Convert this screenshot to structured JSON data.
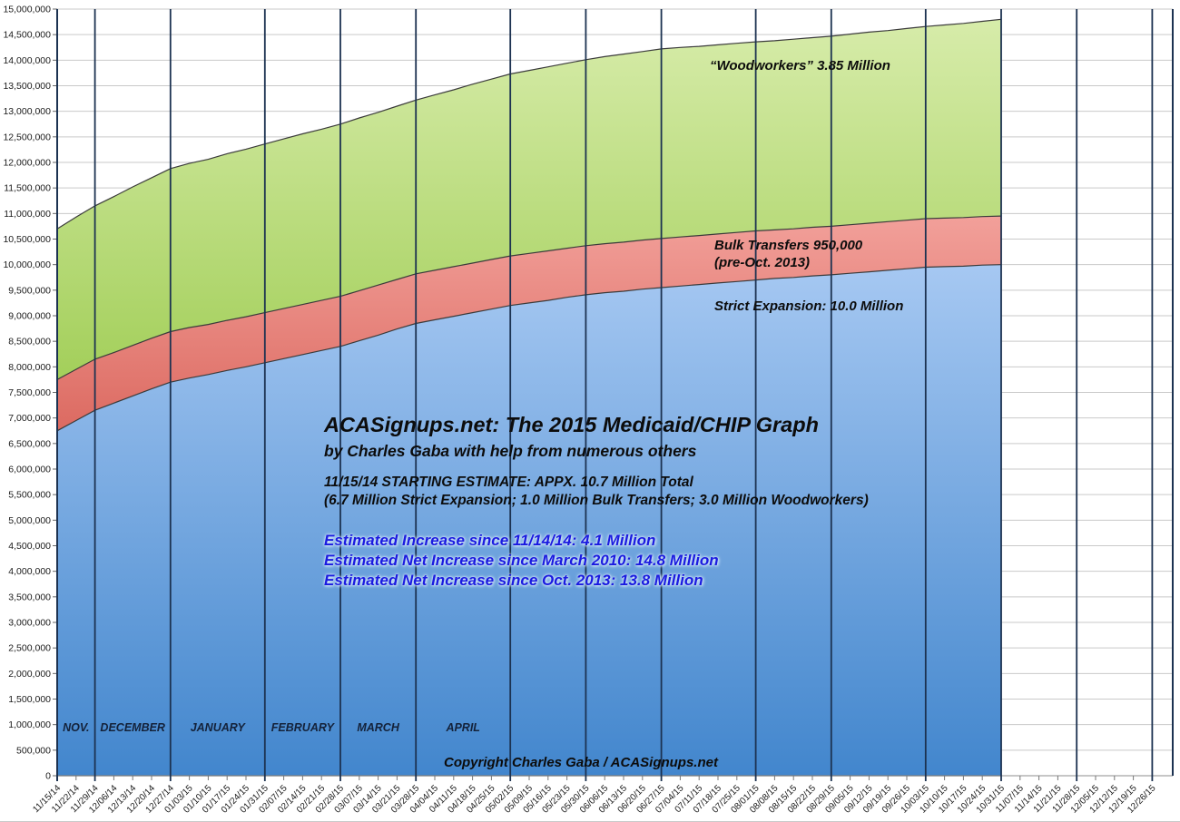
{
  "chart_data": {
    "type": "area",
    "stacked": true,
    "title": "ACASignups.net: The 2015 Medicaid/CHIP Graph",
    "subtitle": "by Charles Gaba with help from numerous others",
    "unit": "millions of people",
    "grid": true,
    "legend_position": "labels-on-areas",
    "y_axis": {
      "min": 0,
      "max": 15000000,
      "step": 500000
    },
    "x_labels": [
      "11/15/14",
      "11/22/14",
      "11/29/14",
      "12/06/14",
      "12/13/14",
      "12/20/14",
      "12/27/14",
      "01/03/15",
      "01/10/15",
      "01/17/15",
      "01/24/15",
      "01/31/15",
      "02/07/15",
      "02/14/15",
      "02/21/15",
      "02/28/15",
      "03/07/15",
      "03/14/15",
      "03/21/15",
      "03/28/15",
      "04/04/15",
      "04/11/15",
      "04/18/15",
      "04/25/15",
      "05/02/15",
      "05/09/15",
      "05/16/15",
      "05/23/15",
      "05/30/15",
      "06/06/15",
      "06/13/15",
      "06/20/15",
      "06/27/15",
      "07/04/15",
      "07/11/15",
      "07/18/15",
      "07/25/15",
      "08/01/15",
      "08/08/15",
      "08/15/15",
      "08/22/15",
      "08/29/15",
      "09/05/15",
      "09/12/15",
      "09/19/15",
      "09/26/15",
      "10/03/15",
      "10/10/15",
      "10/17/15",
      "10/24/15",
      "10/31/15",
      "11/07/15",
      "11/14/15",
      "11/21/15",
      "11/28/15",
      "12/05/15",
      "12/12/15",
      "12/19/15",
      "12/26/15"
    ],
    "data_end_index": 50,
    "series": [
      {
        "name": "Strict Expansion",
        "label_on_chart": "Strict Expansion: 10.0 Million",
        "color_top": "#a6c8f2",
        "color_bottom": "#4286cd",
        "values": [
          6.75,
          6.95,
          7.15,
          7.29,
          7.43,
          7.57,
          7.7,
          7.78,
          7.85,
          7.93,
          8.0,
          8.08,
          8.16,
          8.24,
          8.32,
          8.4,
          8.51,
          8.62,
          8.74,
          8.85,
          8.92,
          8.99,
          9.06,
          9.13,
          9.2,
          9.25,
          9.3,
          9.36,
          9.41,
          9.45,
          9.48,
          9.52,
          9.55,
          9.58,
          9.61,
          9.64,
          9.67,
          9.7,
          9.73,
          9.75,
          9.78,
          9.8,
          9.83,
          9.86,
          9.89,
          9.92,
          9.95,
          9.96,
          9.97,
          9.99,
          10.0
        ]
      },
      {
        "name": "Bulk Transfers",
        "label_on_chart": "Bulk Transfers 950,000 (pre-Oct. 2013)",
        "color_top": "#f2a09a",
        "color_bottom": "#dc6a61",
        "values": [
          1.0,
          1.0,
          1.0,
          0.99,
          0.99,
          0.99,
          0.99,
          0.99,
          0.98,
          0.98,
          0.98,
          0.98,
          0.98,
          0.98,
          0.98,
          0.98,
          0.98,
          0.98,
          0.97,
          0.97,
          0.97,
          0.97,
          0.97,
          0.97,
          0.97,
          0.97,
          0.97,
          0.96,
          0.96,
          0.96,
          0.96,
          0.96,
          0.96,
          0.96,
          0.96,
          0.96,
          0.96,
          0.96,
          0.95,
          0.95,
          0.95,
          0.95,
          0.95,
          0.95,
          0.95,
          0.95,
          0.95,
          0.95,
          0.95,
          0.95,
          0.95
        ]
      },
      {
        "name": "Woodworkers",
        "label_on_chart": "“Woodworkers” 3.85 Million",
        "color_top": "#d7ecaa",
        "color_bottom": "#a3cf5a",
        "values": [
          2.95,
          2.98,
          3.0,
          3.05,
          3.1,
          3.14,
          3.19,
          3.21,
          3.23,
          3.26,
          3.28,
          3.3,
          3.32,
          3.34,
          3.35,
          3.37,
          3.38,
          3.38,
          3.39,
          3.4,
          3.43,
          3.46,
          3.5,
          3.53,
          3.56,
          3.58,
          3.6,
          3.62,
          3.64,
          3.66,
          3.68,
          3.69,
          3.71,
          3.71,
          3.7,
          3.7,
          3.7,
          3.7,
          3.7,
          3.71,
          3.71,
          3.72,
          3.73,
          3.74,
          3.74,
          3.75,
          3.76,
          3.78,
          3.8,
          3.82,
          3.85
        ]
      }
    ],
    "month_boundary_weeks": [
      2,
      6,
      11,
      15,
      19,
      24,
      28,
      32,
      37,
      41,
      46,
      50,
      54,
      58
    ],
    "months": [
      {
        "label": "NOV.",
        "span": [
          0,
          2
        ]
      },
      {
        "label": "DECEMBER",
        "span": [
          2,
          6
        ]
      },
      {
        "label": "JANUARY",
        "span": [
          6,
          11
        ]
      },
      {
        "label": "FEBRUARY",
        "span": [
          11,
          15
        ]
      },
      {
        "label": "MARCH",
        "span": [
          15,
          19
        ]
      },
      {
        "label": "APRIL",
        "span": [
          19,
          24
        ]
      }
    ]
  },
  "annotations": {
    "title": "ACASignups.net: The 2015 Medicaid/CHIP Graph",
    "subtitle": "by Charles Gaba with help from numerous others",
    "estimate_line1": "11/15/14 STARTING ESTIMATE: APPX. 10.7 Million Total",
    "estimate_line2": "(6.7 Million Strict Expansion; 1.0 Million Bulk Transfers; 3.0 Million Woodworkers)",
    "increase_line1": "Estimated Increase since 11/14/14: 4.1 Million",
    "increase_line2": "Estimated Net Increase since March 2010: 14.8 Million",
    "increase_line3": "Estimated Net Increase since Oct. 2013: 13.8 Million",
    "woodworkers_label": "“Woodworkers” 3.85 Million",
    "bulk_label_line1": "Bulk Transfers 950,000",
    "bulk_label_line2": "(pre-Oct. 2013)",
    "strict_label": "Strict Expansion: 10.0 Million",
    "copyright": "Copyright Charles Gaba / ACASignups.net"
  },
  "colors": {
    "grid_line": "#c9c9c9",
    "axis_line": "#8c8c8c",
    "month_line": "#1c3251",
    "band_outline": "#3b3b3b",
    "axis_text": "#1a1a1a",
    "month_label_text": "#14223a",
    "blue_annotation_text": "#1a1ae0"
  }
}
